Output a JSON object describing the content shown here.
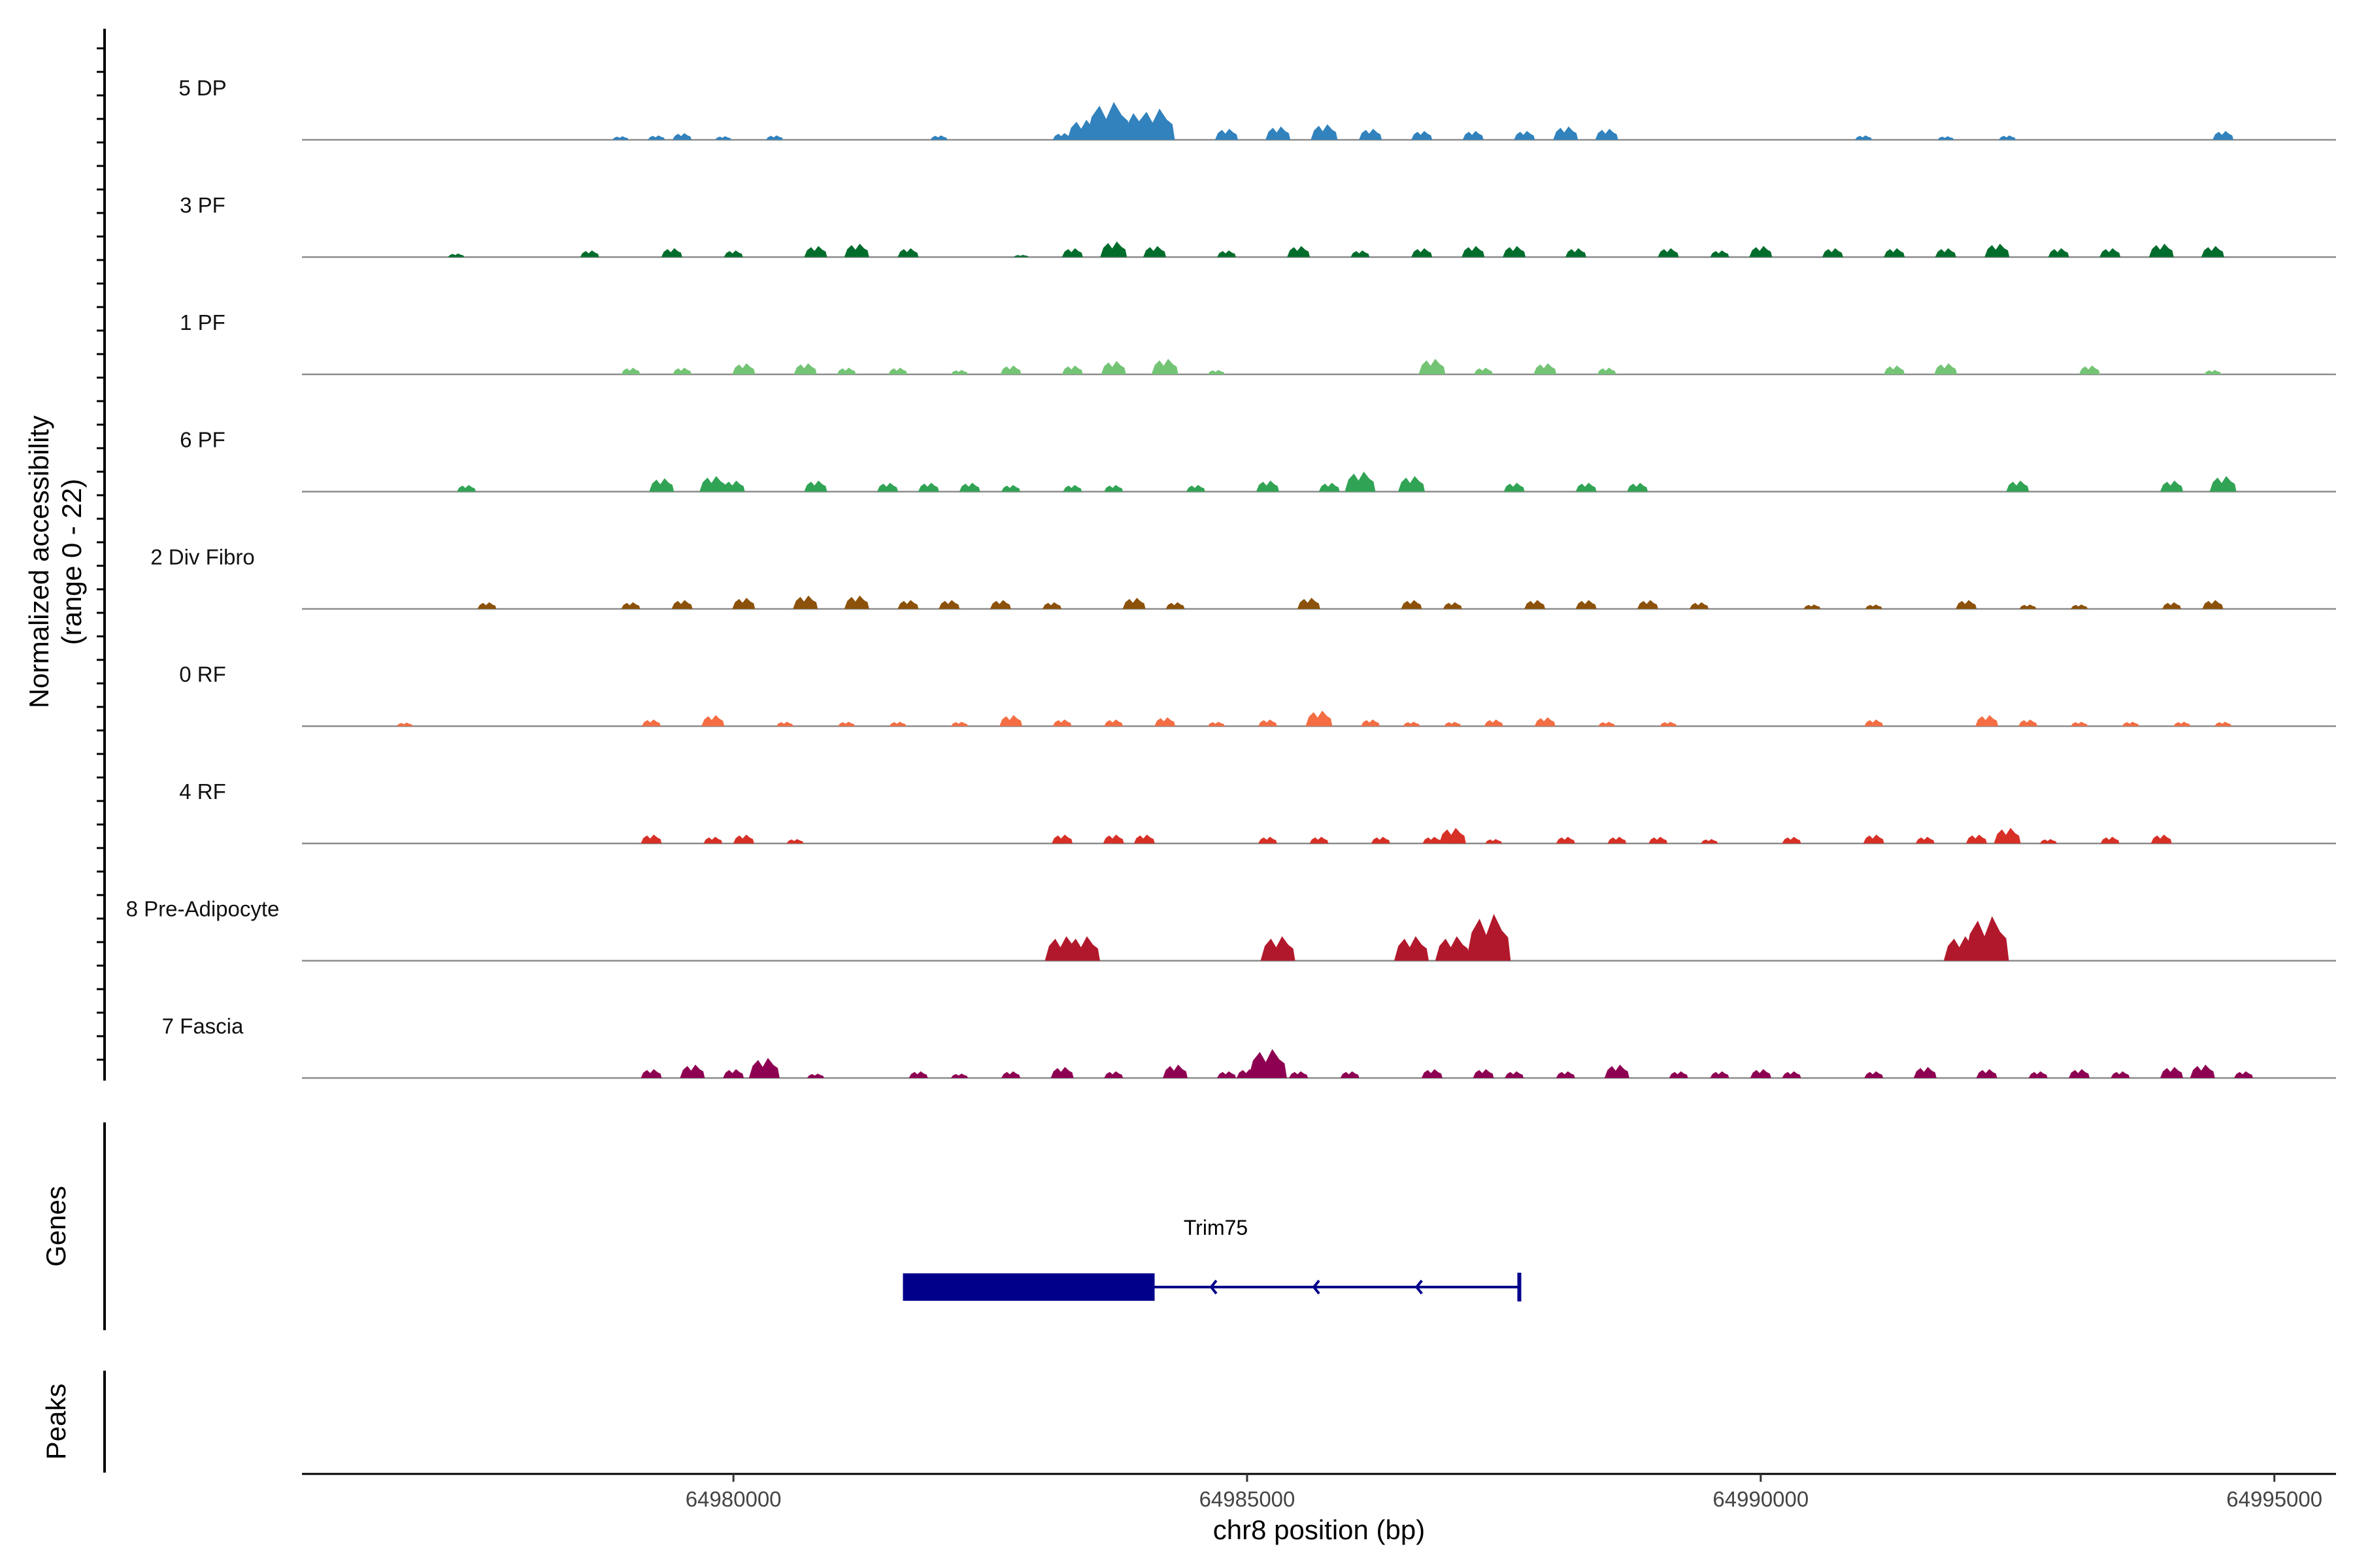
{
  "chart_data": {
    "type": "area",
    "ylabel": "Normalized accessibility",
    "ylabel_range": "(range 0 - 22)",
    "ylim": [
      0,
      22
    ],
    "xlabel": "chr8 position (bp)",
    "xlim": [
      64975800,
      64995600
    ],
    "xticks": [
      64980000,
      64985000,
      64990000,
      64995000
    ],
    "xtick_labels": [
      "64980000",
      "64985000",
      "64990000",
      "64995000"
    ],
    "tracks": [
      {
        "name": "5 DP",
        "color": "#3182bd",
        "peaks": [
          [
            64978900,
            0.8
          ],
          [
            64979250,
            1.0
          ],
          [
            64979500,
            1.5
          ],
          [
            64979900,
            0.8
          ],
          [
            64980400,
            1.0
          ],
          [
            64982000,
            1.0
          ],
          [
            64983200,
            1.5
          ],
          [
            64983400,
            4.5
          ],
          [
            64983650,
            8.5
          ],
          [
            64983850,
            6.0
          ],
          [
            64984100,
            7.0
          ],
          [
            64984800,
            2.5
          ],
          [
            64985300,
            3.0
          ],
          [
            64985750,
            3.5
          ],
          [
            64986200,
            2.5
          ],
          [
            64986700,
            2.0
          ],
          [
            64987200,
            2.0
          ],
          [
            64987700,
            2.0
          ],
          [
            64988100,
            3.0
          ],
          [
            64988500,
            2.5
          ],
          [
            64991000,
            1.0
          ],
          [
            64991800,
            0.8
          ],
          [
            64992400,
            1.0
          ],
          [
            64994500,
            2.0
          ]
        ]
      },
      {
        "name": "3 PF",
        "color": "#006d2c",
        "peaks": [
          [
            64977300,
            0.8
          ],
          [
            64978600,
            1.5
          ],
          [
            64979400,
            2.0
          ],
          [
            64980000,
            1.5
          ],
          [
            64980800,
            2.5
          ],
          [
            64981200,
            3.0
          ],
          [
            64981700,
            2.0
          ],
          [
            64982800,
            0.5
          ],
          [
            64983300,
            2.0
          ],
          [
            64983700,
            3.5
          ],
          [
            64984100,
            2.5
          ],
          [
            64984800,
            1.5
          ],
          [
            64985500,
            2.5
          ],
          [
            64986100,
            1.5
          ],
          [
            64986700,
            2.0
          ],
          [
            64987200,
            2.5
          ],
          [
            64987600,
            2.5
          ],
          [
            64988200,
            2.0
          ],
          [
            64989100,
            2.0
          ],
          [
            64989600,
            1.5
          ],
          [
            64990000,
            2.5
          ],
          [
            64990700,
            2.0
          ],
          [
            64991300,
            2.0
          ],
          [
            64991800,
            2.0
          ],
          [
            64992300,
            3.0
          ],
          [
            64992900,
            2.0
          ],
          [
            64993400,
            2.0
          ],
          [
            64993900,
            3.0
          ],
          [
            64994400,
            2.5
          ]
        ]
      },
      {
        "name": "1 PF",
        "color": "#74c476",
        "peaks": [
          [
            64979000,
            1.5
          ],
          [
            64979500,
            1.5
          ],
          [
            64980100,
            2.5
          ],
          [
            64980700,
            2.5
          ],
          [
            64981100,
            1.5
          ],
          [
            64981600,
            1.5
          ],
          [
            64982200,
            1.0
          ],
          [
            64982700,
            2.0
          ],
          [
            64983300,
            2.0
          ],
          [
            64983700,
            3.0
          ],
          [
            64984200,
            3.5
          ],
          [
            64984700,
            1.0
          ],
          [
            64986800,
            3.5
          ],
          [
            64987300,
            1.5
          ],
          [
            64987900,
            2.5
          ],
          [
            64988500,
            1.5
          ],
          [
            64991300,
            2.0
          ],
          [
            64991800,
            2.5
          ],
          [
            64993200,
            2.0
          ],
          [
            64994400,
            1.0
          ]
        ]
      },
      {
        "name": "6 PF",
        "color": "#31a354",
        "peaks": [
          [
            64977400,
            1.5
          ],
          [
            64979300,
            3.0
          ],
          [
            64979800,
            3.5
          ],
          [
            64980000,
            2.5
          ],
          [
            64980800,
            2.5
          ],
          [
            64981500,
            2.0
          ],
          [
            64981900,
            2.0
          ],
          [
            64982300,
            2.0
          ],
          [
            64982700,
            1.5
          ],
          [
            64983300,
            1.5
          ],
          [
            64983700,
            1.5
          ],
          [
            64984500,
            1.5
          ],
          [
            64985200,
            2.5
          ],
          [
            64985800,
            2.0
          ],
          [
            64986100,
            4.5
          ],
          [
            64986600,
            3.5
          ],
          [
            64987600,
            2.0
          ],
          [
            64988300,
            2.0
          ],
          [
            64988800,
            2.0
          ],
          [
            64992500,
            2.5
          ],
          [
            64994000,
            2.5
          ],
          [
            64994500,
            3.5
          ]
        ]
      },
      {
        "name": "2 Div Fibro",
        "color": "#8c510a",
        "peaks": [
          [
            64977600,
            1.5
          ],
          [
            64979000,
            1.5
          ],
          [
            64979500,
            2.0
          ],
          [
            64980100,
            2.5
          ],
          [
            64980700,
            3.0
          ],
          [
            64981200,
            3.0
          ],
          [
            64981700,
            2.0
          ],
          [
            64982100,
            2.0
          ],
          [
            64982600,
            2.0
          ],
          [
            64983100,
            1.5
          ],
          [
            64983900,
            2.5
          ],
          [
            64984300,
            1.5
          ],
          [
            64985600,
            2.5
          ],
          [
            64986600,
            2.0
          ],
          [
            64987000,
            1.5
          ],
          [
            64987800,
            2.0
          ],
          [
            64988300,
            2.0
          ],
          [
            64988900,
            2.0
          ],
          [
            64989400,
            1.5
          ],
          [
            64990500,
            1.0
          ],
          [
            64991100,
            1.0
          ],
          [
            64992000,
            2.0
          ],
          [
            64992600,
            1.0
          ],
          [
            64993100,
            1.0
          ],
          [
            64994000,
            1.5
          ],
          [
            64994400,
            2.0
          ]
        ]
      },
      {
        "name": "0 RF",
        "color": "#f46d43",
        "peaks": [
          [
            64976800,
            0.8
          ],
          [
            64979200,
            1.5
          ],
          [
            64979800,
            2.5
          ],
          [
            64980500,
            1.0
          ],
          [
            64981100,
            1.0
          ],
          [
            64981600,
            1.0
          ],
          [
            64982200,
            1.0
          ],
          [
            64982700,
            2.5
          ],
          [
            64983200,
            1.5
          ],
          [
            64983700,
            1.5
          ],
          [
            64984200,
            2.0
          ],
          [
            64984700,
            1.0
          ],
          [
            64985200,
            1.5
          ],
          [
            64985700,
            3.5
          ],
          [
            64986200,
            1.5
          ],
          [
            64986600,
            1.0
          ],
          [
            64987000,
            1.0
          ],
          [
            64987400,
            1.5
          ],
          [
            64987900,
            2.0
          ],
          [
            64988500,
            1.0
          ],
          [
            64989100,
            1.0
          ],
          [
            64991100,
            1.5
          ],
          [
            64992200,
            2.5
          ],
          [
            64992600,
            1.5
          ],
          [
            64993100,
            1.0
          ],
          [
            64993600,
            1.0
          ],
          [
            64994100,
            1.0
          ],
          [
            64994500,
            1.0
          ]
        ]
      },
      {
        "name": "4 RF",
        "color": "#d73027",
        "peaks": [
          [
            64979200,
            2.0
          ],
          [
            64979800,
            1.5
          ],
          [
            64980100,
            2.0
          ],
          [
            64980600,
            1.0
          ],
          [
            64983200,
            2.0
          ],
          [
            64983700,
            2.0
          ],
          [
            64984000,
            2.0
          ],
          [
            64985200,
            1.5
          ],
          [
            64985700,
            1.5
          ],
          [
            64986300,
            1.5
          ],
          [
            64986800,
            1.5
          ],
          [
            64987000,
            3.5
          ],
          [
            64987400,
            1.0
          ],
          [
            64988100,
            1.5
          ],
          [
            64988600,
            1.5
          ],
          [
            64989000,
            1.5
          ],
          [
            64989500,
            1.0
          ],
          [
            64990300,
            1.5
          ],
          [
            64991100,
            2.0
          ],
          [
            64991600,
            1.5
          ],
          [
            64992100,
            2.0
          ],
          [
            64992400,
            3.5
          ],
          [
            64992800,
            1.0
          ],
          [
            64993400,
            1.5
          ],
          [
            64993900,
            2.0
          ]
        ]
      },
      {
        "name": "8 Pre-Adipocyte",
        "color": "#b2182b",
        "peaks": [
          [
            64983200,
            5.5
          ],
          [
            64983400,
            5.5
          ],
          [
            64985300,
            5.5
          ],
          [
            64986600,
            5.5
          ],
          [
            64987000,
            5.5
          ],
          [
            64987350,
            10.5
          ],
          [
            64991950,
            5.5
          ],
          [
            64992200,
            10.0
          ]
        ]
      },
      {
        "name": "7 Fascia",
        "color": "#8e0152",
        "peaks": [
          [
            64979200,
            2.0
          ],
          [
            64979600,
            3.0
          ],
          [
            64980000,
            2.0
          ],
          [
            64980300,
            4.5
          ],
          [
            64980800,
            1.0
          ],
          [
            64981800,
            1.5
          ],
          [
            64982200,
            1.0
          ],
          [
            64982700,
            1.5
          ],
          [
            64983200,
            2.5
          ],
          [
            64983700,
            1.5
          ],
          [
            64984300,
            3.0
          ],
          [
            64984800,
            1.5
          ],
          [
            64985000,
            2.0
          ],
          [
            64985200,
            6.5
          ],
          [
            64985500,
            1.5
          ],
          [
            64986000,
            1.5
          ],
          [
            64986800,
            2.0
          ],
          [
            64987300,
            2.0
          ],
          [
            64987600,
            1.5
          ],
          [
            64988100,
            1.5
          ],
          [
            64988600,
            3.0
          ],
          [
            64989200,
            1.5
          ],
          [
            64989600,
            1.5
          ],
          [
            64990000,
            2.0
          ],
          [
            64990300,
            1.5
          ],
          [
            64991100,
            1.5
          ],
          [
            64991600,
            2.5
          ],
          [
            64992200,
            2.0
          ],
          [
            64992700,
            1.5
          ],
          [
            64993100,
            2.0
          ],
          [
            64993500,
            1.5
          ],
          [
            64994000,
            2.5
          ],
          [
            64994300,
            3.0
          ],
          [
            64994700,
            1.5
          ]
        ]
      }
    ],
    "genes_axis_label": "Genes",
    "peaks_axis_label": "Peaks",
    "gene": {
      "name": "Trim75",
      "color": "#00008b",
      "start": 64981650,
      "end": 64987650,
      "thick_start": 64981650,
      "thick_end": 64984100,
      "strand": "-",
      "arrow_positions": [
        64984650,
        64985650,
        64986650
      ]
    }
  }
}
